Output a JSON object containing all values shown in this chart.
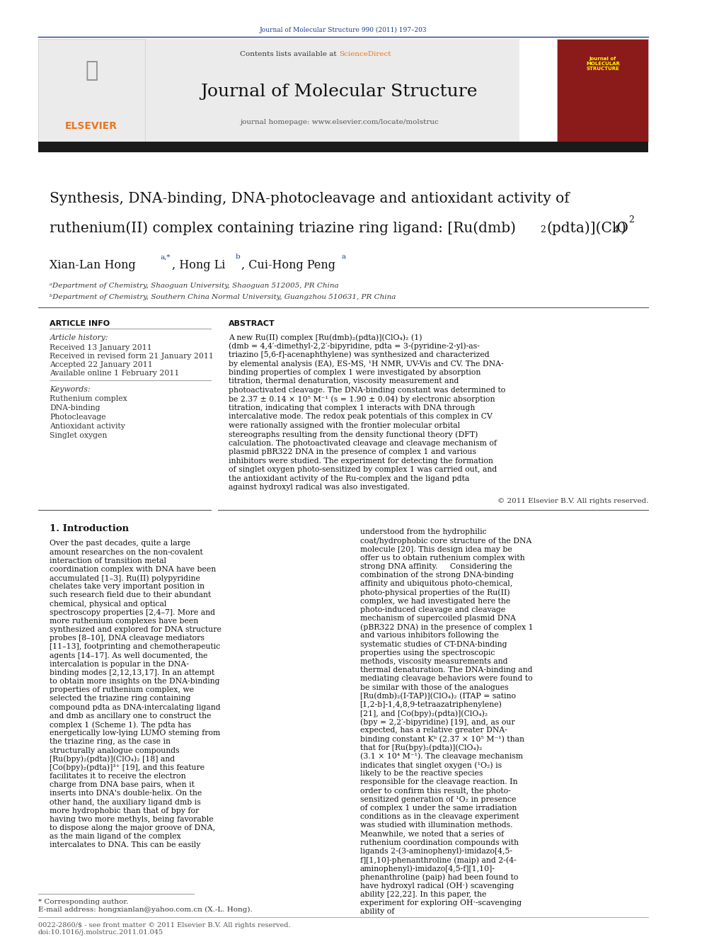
{
  "page_width": 9.92,
  "page_height": 13.23,
  "bg_color": "#ffffff",
  "journal_ref": "Journal of Molecular Structure 990 (2011) 197–203",
  "journal_ref_color": "#1a3c8c",
  "contents_text": "Contents lists available at ",
  "sciencedirect_text": "ScienceDirect",
  "sciencedirect_color": "#e87722",
  "journal_name": "Journal of Molecular Structure",
  "homepage_text": "journal homepage: www.elsevier.com/locate/molstruc",
  "title_line1": "Synthesis, DNA-binding, DNA-photocleavage and antioxidant activity of",
  "title_line2": "ruthenium(II) complex containing triazine ring ligand: [Ru(dmb)",
  "title_subscript2": "2",
  "title_line2b": "(pdta)](ClO",
  "title_subscript4": "4",
  "title_line2c": ")",
  "title_superscript2": "2",
  "authors": "Xian-Lan Hong",
  "author_super_a": "a,*",
  "author2": ", Hong Li",
  "author2_super": "b",
  "author3": ", Cui-Hong Peng",
  "author3_super": "a",
  "affil_a": "ᵃDepartment of Chemistry, Shaoguan University, Shaoguan 512005, PR China",
  "affil_b": "ᵇDepartment of Chemistry, Southern China Normal University, Guangzhou 510631, PR China",
  "article_info_title": "ARTICLE INFO",
  "abstract_title": "ABSTRACT",
  "article_history_label": "Article history:",
  "received1": "Received 13 January 2011",
  "received2": "Received in revised form 21 January 2011",
  "accepted": "Accepted 22 January 2011",
  "available": "Available online 1 February 2011",
  "keywords_label": "Keywords:",
  "keywords": [
    "Ruthenium complex",
    "DNA-binding",
    "Photocleavage",
    "Antioxidant activity",
    "Singlet oxygen"
  ],
  "abstract_text": "A new Ru(II) complex [Ru(dmb)₂(pdta)](ClO₄)₂ (1) (dmb = 4,4′-dimethyl-2,2′-bipyridine, pdta = 3-(pyridine-2-yl)-as-triazino [5,6-f]-acenaphthylene) was synthesized and characterized by elemental analysis (EA), ES-MS, ¹H NMR, UV-Vis and CV. The DNA-binding properties of complex 1 were investigated by absorption titration, thermal denaturation, viscosity measurement and photoactivated cleavage. The DNA-binding constant was determined to be 2.37 ± 0.14 × 10⁵ M⁻¹ (s = 1.90 ± 0.04) by electronic absorption titration, indicating that complex 1 interacts with DNA through intercalative mode. The redox peak potentials of this complex in CV were rationally assigned with the frontier molecular orbital stereographs resulting from the density functional theory (DFT) calculation. The photoactivated cleavage and cleavage mechanism of plasmid pBR322 DNA in the presence of complex 1 and various inhibitors were studied. The experiment for detecting the formation of singlet oxygen photo-sensitized by complex 1 was carried out, and the antioxidant activity of the Ru-complex and the ligand pdta against hydroxyl radical was also investigated.",
  "copyright": "© 2011 Elsevier B.V. All rights reserved.",
  "intro_title": "1. Introduction",
  "intro_col1_p1": "Over the past decades, quite a large amount researches on the non-covalent interaction of transition metal coordination complex with DNA have been accumulated [1–3]. Ru(II) polypyridine chelates take very important position in such research field due to their abundant chemical, physical and optical spectroscopy properties [2,4–7]. More and more ruthenium complexes have been synthesized and explored for DNA structure probes [8–10], DNA cleavage mediators [11–13], footprinting and chemotherapeutic agents [14–17]. As well documented, the intercalation is popular in the DNA-binding modes [2,12,13,17]. In an attempt to obtain more insights on the DNA-binding properties of ruthenium complex, we selected the triazine ring containing compound pdta as DNA-intercalating ligand and dmb as ancillary one to construct the complex 1 (Scheme 1). The pdta has energetically low-lying LUMO steming from the triazine ring, as the case in structurally analogue compounds [Ru(bpy)₂(pdta)](ClO₄)₂ [18] and [Co(bpy)₂(pdta)]³⁺ [19], and this feature facilitates it to receive the electron charge from DNA base pairs, when it inserts into DNA's double-helix. On the other hand, the auxiliary ligand dmb is more hydrophobic than that of bpy for having two more methyls, being favorable to dispose along the major groove of DNA, as the main ligand of the complex intercalates to DNA. This can be easily",
  "intro_col2_p1": "understood from the hydrophilic coat/hydrophobic core structure of the DNA molecule [20]. This design idea may be offer us to obtain ruthenium complex with strong DNA affinity.\n    Considering the combination of the strong DNA-binding affinity and ubiquitous photo-chemical, photo-physical properties of the Ru(II) complex, we had investigated here the photo-induced cleavage and cleavage mechanism of supercoiled plasmid DNA (pBR322 DNA) in the presence of complex 1 and various inhibitors following the systematic studies of CT-DNA-binding properties using the spectroscopic methods, viscosity measurements and thermal denaturation. The DNA-binding and mediating cleavage behaviors were found to be similar with those of the analogues [Ru(dmb)₂(I-TAP)](ClO₄)₂ (ITAP = satino [1,2-b]-1,4,8,9-tetraazatriphenylene) [21], and [Co(bpy)₂(pdta)](ClO₄)₂ (bpy = 2,2′-bipyridine) [19], and, as our expected, has a relative greater DNA-binding constant Kᵇ (2.37 × 10⁵ M⁻¹) than that for [Ru(bpy)₂(pdta)](ClO₄)₂ (3.1 × 10⁴ M⁻¹). The cleavage mechanism indicates that singlet oxygen (¹O₂) is likely to be the reactive species responsible for the cleavage reaction. In order to confirm this result, the photo-sensitized generation of ¹O₂ in presence of complex 1 under the same irradiation conditions as in the cleavage experiment was studied with illumination methods. Meanwhile, we noted that a series of ruthenium coordination compounds with ligands 2-(3-aminophenyl)-imidazo[4,5-f][1,10]-phenanthroline (maip) and 2-(4-aminophenyl)-imidazo[4,5-f][1,10]-phenanthroline (paip) had been found to have hydroxyl radical (OH·) scavenging ability [22,22]. In this paper, the experiment for exploring OH·-scavenging ability of",
  "footnote_star": "* Corresponding author.",
  "footnote_email": "E-mail address: hongxianlan@yahoo.com.cn (X.-L. Hong).",
  "footer_left": "0022-2860/$ - see front matter © 2011 Elsevier B.V. All rights reserved.",
  "footer_doi": "doi:10.1016/j.molstruc.2011.01.045",
  "elsevier_color": "#e87722",
  "header_line_color": "#1a3c8c",
  "dark_bar_color": "#1a1a1a"
}
